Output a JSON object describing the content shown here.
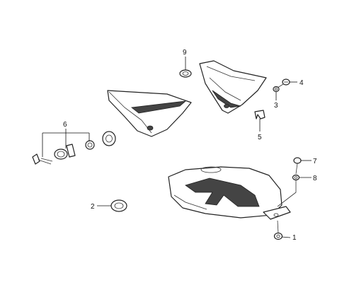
{
  "diagram": {
    "title": "",
    "callouts": [
      {
        "id": "1",
        "label": "1",
        "part": "nut"
      },
      {
        "id": "2",
        "label": "2",
        "part": "rubber-grommet"
      },
      {
        "id": "3",
        "label": "3",
        "part": "washer"
      },
      {
        "id": "4",
        "label": "4",
        "part": "screw"
      },
      {
        "id": "5",
        "label": "5",
        "part": "clip-nut"
      },
      {
        "id": "6",
        "label": "6",
        "part": "quick-release-fastener-set"
      },
      {
        "id": "7",
        "label": "7",
        "part": "bolt"
      },
      {
        "id": "8",
        "label": "8",
        "part": "washer"
      },
      {
        "id": "9",
        "label": "9",
        "part": "grommet"
      }
    ]
  }
}
